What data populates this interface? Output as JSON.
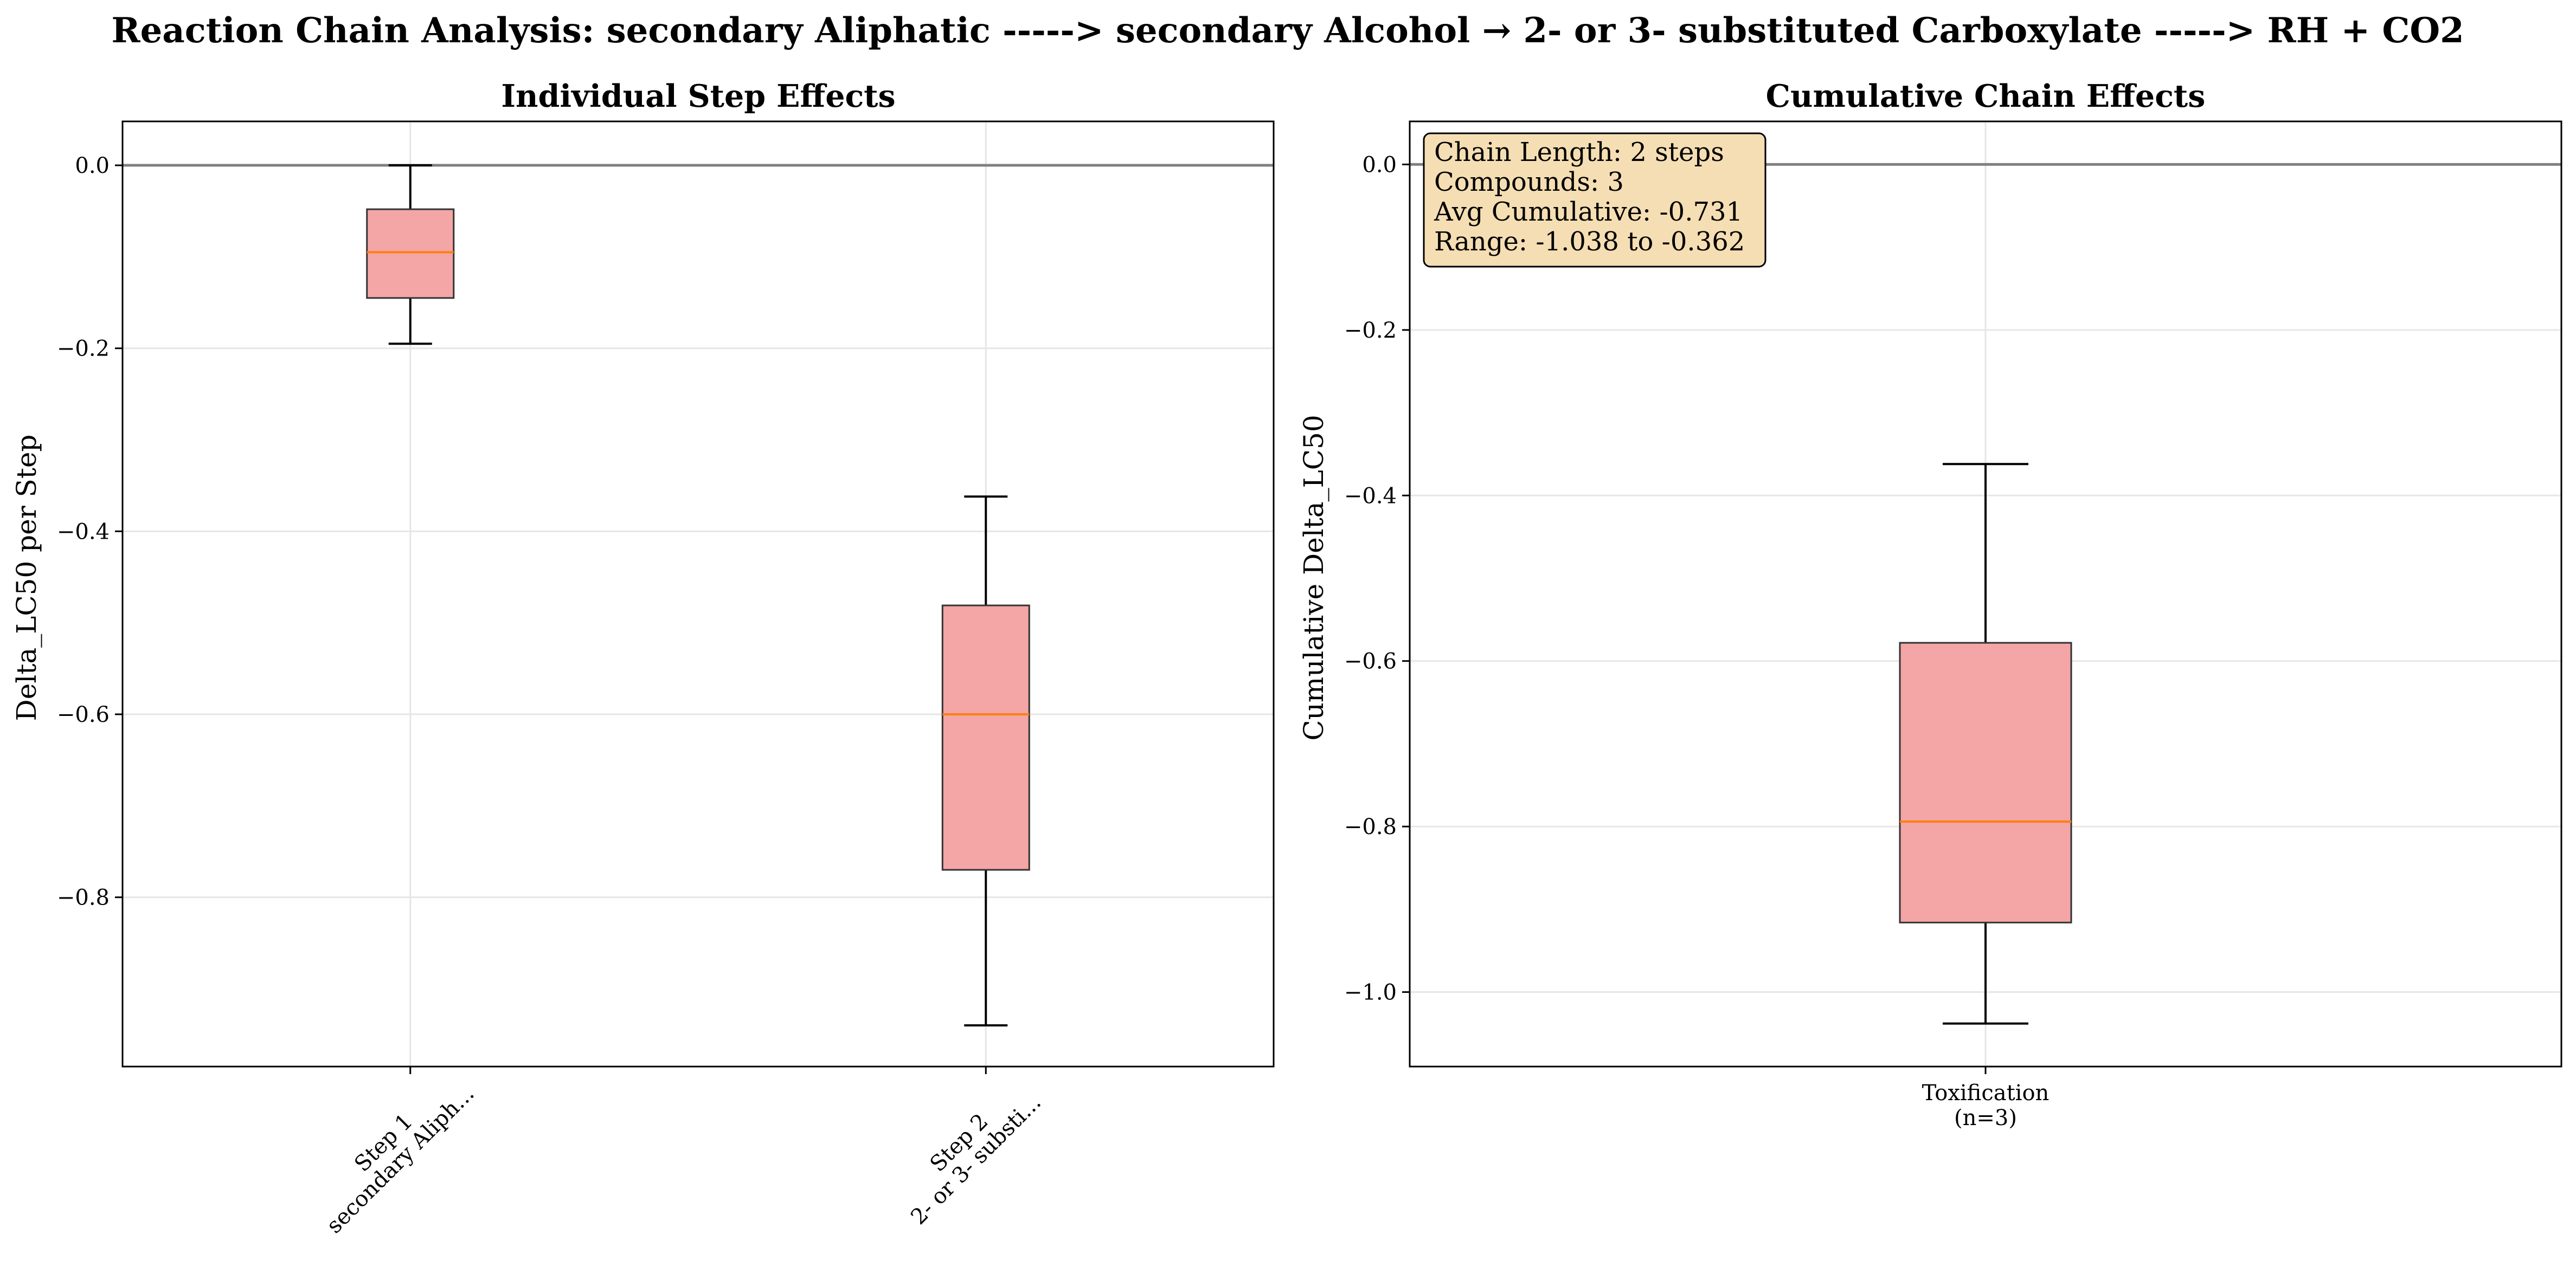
{
  "figure": {
    "title": "Reaction Chain Analysis: secondary Aliphatic -----> secondary Alcohol → 2- or 3- substituted Carboxylate -----> RH + CO2"
  },
  "colors": {
    "box_fill": "#f4a5a6",
    "box_edge": "#333333",
    "median": "#ff7f0e",
    "whisker": "#000000",
    "reference_line": "#808080",
    "grid": "#e6e6e6",
    "info_box_fill": "#f5deb3"
  },
  "chart_data": [
    {
      "type": "box",
      "title": "Individual Step Effects",
      "xlabel": "",
      "ylabel": "Delta_LC50 per Step",
      "ylim": [
        -0.985,
        0.048
      ],
      "yticks": [
        0.0,
        -0.2,
        -0.4,
        -0.6,
        -0.8
      ],
      "ytick_labels": [
        "0.0",
        "−0.2",
        "−0.4",
        "−0.6",
        "−0.8"
      ],
      "reference_line_y": 0.0,
      "grid": true,
      "categories": [
        [
          "Step 1",
          "secondary Aliph..."
        ],
        [
          "Step 2",
          "2- or 3- substi..."
        ]
      ],
      "xtick_rotation": -45,
      "boxes": [
        {
          "whisker_high": 0.0,
          "q3": -0.048,
          "median": -0.095,
          "q1": -0.145,
          "whisker_low": -0.195
        },
        {
          "whisker_high": -0.362,
          "q3": -0.481,
          "median": -0.6,
          "q1": -0.77,
          "whisker_low": -0.94
        }
      ]
    },
    {
      "type": "box",
      "title": "Cumulative Chain Effects",
      "xlabel": "",
      "ylabel": "Cumulative Delta_LC50",
      "ylim": [
        -1.09,
        0.052
      ],
      "yticks": [
        0.0,
        -0.2,
        -0.4,
        -0.6,
        -0.8,
        -1.0
      ],
      "ytick_labels": [
        "0.0",
        "−0.2",
        "−0.4",
        "−0.6",
        "−0.8",
        "−1.0"
      ],
      "reference_line_y": 0.0,
      "grid": true,
      "categories": [
        [
          "Toxification",
          "(n=3)"
        ]
      ],
      "xtick_rotation": 0,
      "boxes": [
        {
          "whisker_high": -0.362,
          "q3": -0.578,
          "median": -0.794,
          "q1": -0.916,
          "whisker_low": -1.038
        }
      ],
      "annotation": {
        "placement": "top-left",
        "lines": [
          "Chain Length: 2 steps",
          "Compounds: 3",
          "Avg Cumulative: -0.731",
          "Range: -1.038 to -0.362"
        ]
      }
    }
  ]
}
